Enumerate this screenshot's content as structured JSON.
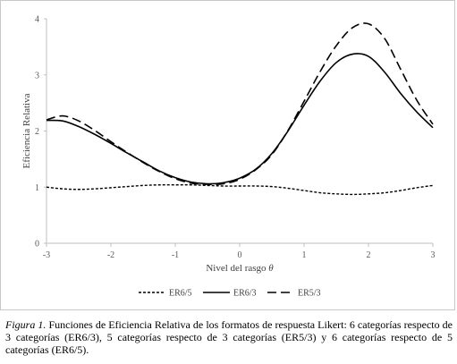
{
  "chart_data": {
    "type": "line",
    "xlabel_text": "Nivel del rasgo ",
    "xlabel_symbol": "θ",
    "ylabel": "Eficiencia Relativa",
    "xlim": [
      -3,
      3
    ],
    "ylim": [
      0,
      4
    ],
    "xticks": [
      "-3",
      "-2",
      "-1",
      "0",
      "1",
      "2",
      "3"
    ],
    "yticks": [
      "0",
      "1",
      "2",
      "3",
      "4"
    ],
    "legend_position": "bottom-center",
    "x": [
      -3,
      -2.75,
      -2.5,
      -2.25,
      -2,
      -1.75,
      -1.5,
      -1.25,
      -1,
      -0.75,
      -0.5,
      -0.25,
      0,
      0.25,
      0.5,
      0.75,
      1,
      1.25,
      1.5,
      1.75,
      2,
      2.25,
      2.5,
      2.75,
      3
    ],
    "series": [
      {
        "name": "ER6/5",
        "dash": "dotted",
        "values": [
          1.0,
          0.97,
          0.96,
          0.97,
          0.99,
          1.01,
          1.03,
          1.04,
          1.04,
          1.04,
          1.03,
          1.02,
          1.02,
          1.02,
          1.01,
          0.98,
          0.94,
          0.9,
          0.88,
          0.87,
          0.88,
          0.9,
          0.94,
          0.99,
          1.03
        ]
      },
      {
        "name": "ER6/3",
        "dash": "solid",
        "values": [
          2.19,
          2.18,
          2.08,
          1.94,
          1.78,
          1.61,
          1.45,
          1.29,
          1.17,
          1.09,
          1.06,
          1.08,
          1.16,
          1.32,
          1.6,
          2.0,
          2.46,
          2.89,
          3.22,
          3.37,
          3.33,
          3.05,
          2.67,
          2.34,
          2.06
        ]
      },
      {
        "name": "ER5/3",
        "dash": "dashed",
        "values": [
          2.2,
          2.27,
          2.18,
          2.01,
          1.81,
          1.62,
          1.44,
          1.28,
          1.15,
          1.07,
          1.05,
          1.06,
          1.14,
          1.31,
          1.58,
          2.01,
          2.53,
          3.06,
          3.52,
          3.84,
          3.91,
          3.65,
          3.1,
          2.55,
          2.12
        ]
      }
    ]
  },
  "caption": {
    "label": "Figura 1.",
    "text": " Funciones de Eficiencia Relativa de los formatos de respuesta Likert: 6 categorías respecto de 3 categorías (ER6/3), 5 categorías respecto de 3 categorías (ER5/3) y 6 categorías respecto de 5 categorías (ER6/5)."
  }
}
